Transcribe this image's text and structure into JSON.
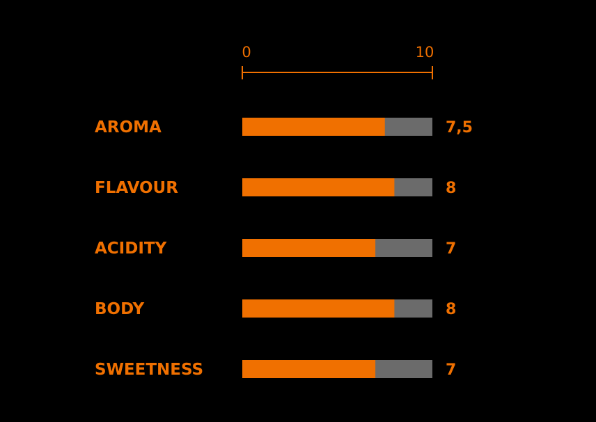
{
  "chart_data": {
    "type": "bar",
    "orientation": "horizontal",
    "categories": [
      "AROMA",
      "FLAVOUR",
      "ACIDITY",
      "BODY",
      "SWEETNESS"
    ],
    "values": [
      7.5,
      8,
      7,
      8,
      7
    ],
    "value_labels": [
      "7,5",
      "8",
      "7",
      "8",
      "7"
    ],
    "xlim": [
      0,
      10
    ],
    "ticks": [
      "0",
      "10"
    ],
    "colors": {
      "background": "#000000",
      "bar": "#F07000",
      "track": "#6B6B6B",
      "text": "#F07000"
    }
  }
}
